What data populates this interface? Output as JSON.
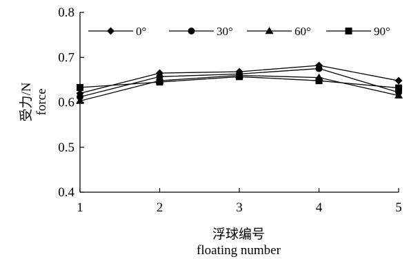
{
  "chart_data": {
    "type": "line",
    "x": [
      1,
      2,
      3,
      4,
      5
    ],
    "xticks": [
      "1",
      "2",
      "3",
      "4",
      "5"
    ],
    "yticks": [
      "0.4",
      "0.5",
      "0.6",
      "0.7",
      "0.8"
    ],
    "xlim": [
      1,
      5
    ],
    "ylim": [
      0.4,
      0.8
    ],
    "xlabel": [
      "浮球编号",
      "floating number"
    ],
    "ylabel": [
      "受力/N",
      "force"
    ],
    "grid": false,
    "legend_position": "top",
    "series": [
      {
        "name": "0°",
        "marker": "diamond",
        "values": [
          0.62,
          0.665,
          0.668,
          0.682,
          0.648
        ]
      },
      {
        "name": "30°",
        "marker": "circle",
        "values": [
          0.612,
          0.657,
          0.663,
          0.675,
          0.622
        ]
      },
      {
        "name": "60°",
        "marker": "triangle",
        "values": [
          0.603,
          0.648,
          0.66,
          0.655,
          0.615
        ]
      },
      {
        "name": "90°",
        "marker": "square",
        "values": [
          0.633,
          0.645,
          0.657,
          0.648,
          0.632
        ]
      }
    ]
  }
}
